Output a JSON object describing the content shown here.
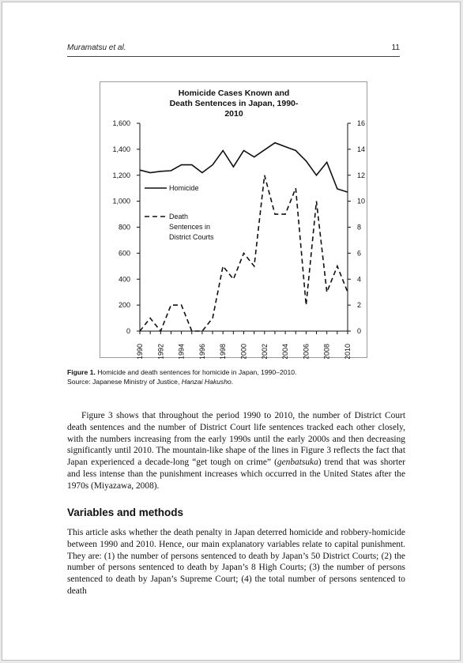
{
  "header": {
    "authors": "Muramatsu et al.",
    "page_number": "11"
  },
  "chart_data": {
    "type": "line",
    "title_lines": [
      "Homicide Cases Known and",
      "Death Sentences in Japan, 1990-",
      "2010"
    ],
    "x": [
      1990,
      1991,
      1992,
      1993,
      1994,
      1995,
      1996,
      1997,
      1998,
      1999,
      2000,
      2001,
      2002,
      2003,
      2004,
      2005,
      2006,
      2007,
      2008,
      2009,
      2010
    ],
    "x_tick_labels": [
      "1990",
      "1992",
      "1994",
      "1996",
      "1998",
      "2000",
      "2002",
      "2004",
      "2006",
      "2008",
      "2010"
    ],
    "y_left_ticks": [
      "0",
      "200",
      "400",
      "600",
      "800",
      "1,000",
      "1,200",
      "1,400",
      "1,600"
    ],
    "y_right_ticks": [
      "0",
      "2",
      "4",
      "6",
      "8",
      "10",
      "12",
      "14",
      "16"
    ],
    "ylim_left": [
      0,
      1600
    ],
    "ylim_right": [
      0,
      16
    ],
    "grid": false,
    "legend_placement": "left, inside plot",
    "series": [
      {
        "name": "Homicide",
        "axis": "left",
        "style": "solid",
        "values": [
          1240,
          1220,
          1230,
          1235,
          1280,
          1280,
          1220,
          1280,
          1390,
          1265,
          1390,
          1340,
          1395,
          1450,
          1420,
          1390,
          1310,
          1200,
          1300,
          1095,
          1070
        ]
      },
      {
        "name_lines": [
          "Death",
          "Sentences in",
          "District Courts"
        ],
        "axis": "right",
        "style": "dashed",
        "values": [
          0,
          1,
          0,
          2,
          2,
          0,
          0,
          1,
          5,
          4,
          6,
          5,
          12,
          9,
          9,
          11,
          2,
          10,
          3,
          5,
          3
        ]
      }
    ],
    "colors": {
      "line": "#111111",
      "axis": "#111111",
      "frame": "#9a9a9a"
    }
  },
  "figure": {
    "label": "Figure 1.",
    "caption": " Homicide and death sentences for homicide in Japan, 1990–2010.",
    "source_prefix": "Source: Japanese Ministry of Justice, ",
    "source_title": "Hanzai Hakusho",
    "source_suffix": "."
  },
  "paragraph1": {
    "before_italic": "Figure 3 shows that throughout the period 1990 to 2010, the number of District Court death sentences and the number of District Court life sentences tracked each other closely, with the numbers increasing from the early 1990s until the early 2000s and then decreasing significantly until 2010. The mountain-like shape of the lines in Figure 3 reflects the fact that Japan experienced a decade-long “get tough on crime” (",
    "italic": "genbatsuka",
    "after_italic": ") trend that was shorter and less intense than the punishment increases which occurred in the United States after the 1970s (Miyazawa, 2008)."
  },
  "section": {
    "heading": "Variables and methods",
    "paragraph": "This article asks whether the death penalty in Japan deterred homicide and robbery-homicide between 1990 and 2010. Hence, our main explanatory variables relate to capital punishment. They are: (1) the number of persons sentenced to death by Japan’s 50 District Courts; (2) the number of persons sentenced to death by Japan’s 8 High Courts; (3) the number of persons sentenced to death by Japan’s Supreme Court; (4) the total number of persons sentenced to death"
  }
}
